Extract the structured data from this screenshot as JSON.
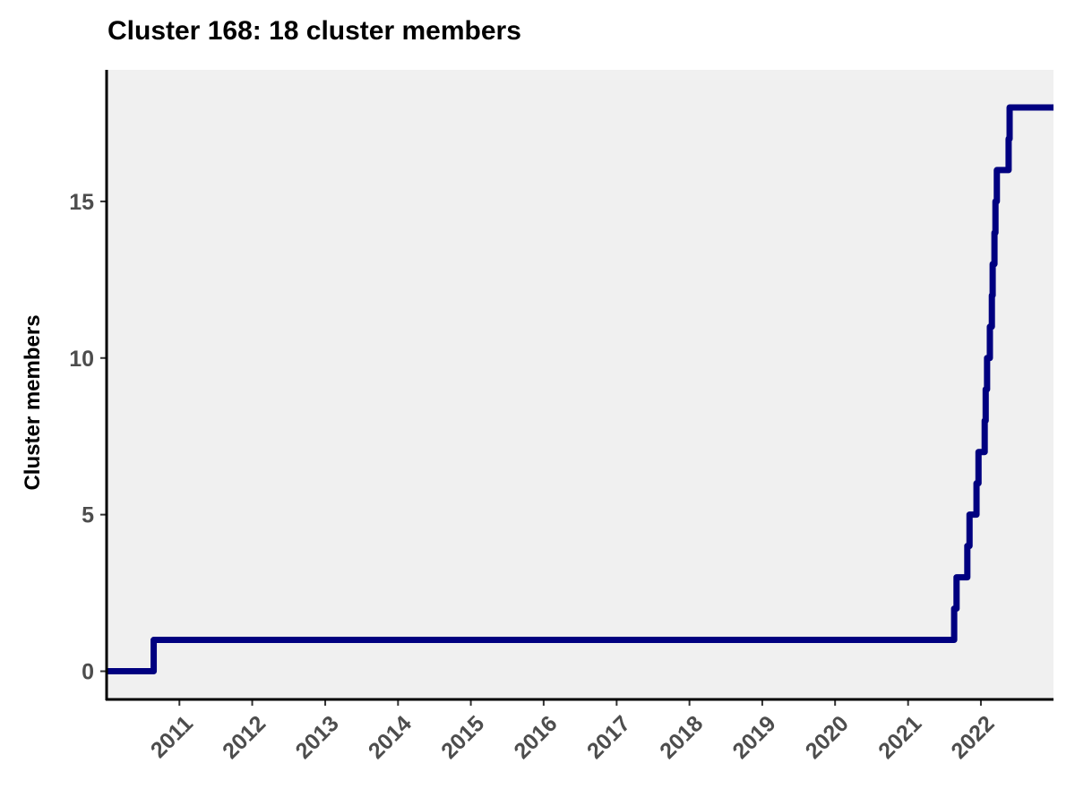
{
  "chart_data": {
    "type": "line",
    "step": true,
    "title": "Cluster 168: 18 cluster members",
    "xlabel": "",
    "ylabel": "Cluster members",
    "x_type": "date",
    "xlim": [
      "2010-01-01",
      "2022-12-31"
    ],
    "ylim": [
      -0.9,
      19.2
    ],
    "x_ticks": [
      "2011",
      "2012",
      "2013",
      "2014",
      "2015",
      "2016",
      "2017",
      "2018",
      "2019",
      "2020",
      "2021",
      "2022"
    ],
    "y_ticks": [
      "0",
      "5",
      "10",
      "15"
    ],
    "grid": false,
    "legend": "none",
    "panel_background": "#f0f0f0",
    "series": [
      {
        "color": "#000080",
        "points": [
          {
            "x": "2010-01-01",
            "y": 0
          },
          {
            "x": "2010-08-25",
            "y": 1
          },
          {
            "x": "2021-08-20",
            "y": 2
          },
          {
            "x": "2021-09-01",
            "y": 3
          },
          {
            "x": "2021-10-25",
            "y": 4
          },
          {
            "x": "2021-11-05",
            "y": 5
          },
          {
            "x": "2021-12-10",
            "y": 6
          },
          {
            "x": "2021-12-20",
            "y": 7
          },
          {
            "x": "2022-01-20",
            "y": 8
          },
          {
            "x": "2022-01-25",
            "y": 9
          },
          {
            "x": "2022-02-01",
            "y": 10
          },
          {
            "x": "2022-02-15",
            "y": 11
          },
          {
            "x": "2022-02-25",
            "y": 12
          },
          {
            "x": "2022-03-01",
            "y": 13
          },
          {
            "x": "2022-03-10",
            "y": 14
          },
          {
            "x": "2022-03-15",
            "y": 15
          },
          {
            "x": "2022-03-22",
            "y": 16
          },
          {
            "x": "2022-05-20",
            "y": 17
          },
          {
            "x": "2022-05-25",
            "y": 18
          },
          {
            "x": "2022-12-31",
            "y": 18
          }
        ]
      }
    ]
  }
}
